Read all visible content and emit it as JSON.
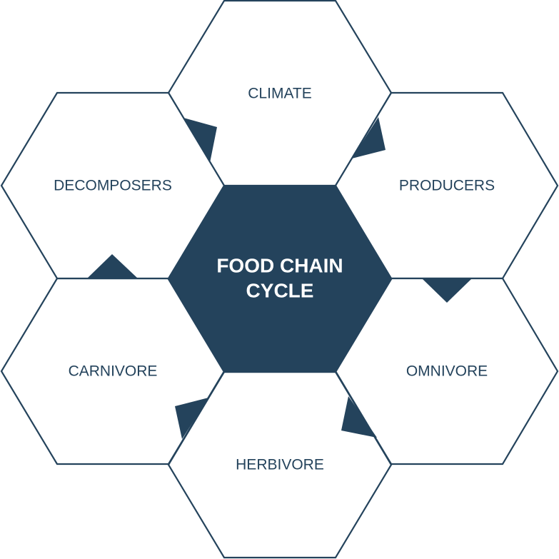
{
  "diagram": {
    "center": {
      "line1": "FOOD CHAIN",
      "line2": "CYCLE"
    },
    "nodes": [
      {
        "id": "climate",
        "label": "CLIMATE"
      },
      {
        "id": "producers",
        "label": "PRODUCERS"
      },
      {
        "id": "omnivore",
        "label": "OMNIVORE"
      },
      {
        "id": "herbivore",
        "label": "HERBIVORE"
      },
      {
        "id": "carnivore",
        "label": "CARNIVORE"
      },
      {
        "id": "decomposers",
        "label": "DECOMPOSERS"
      }
    ]
  },
  "colors": {
    "primary": "#24435c",
    "background": "#ffffff"
  }
}
